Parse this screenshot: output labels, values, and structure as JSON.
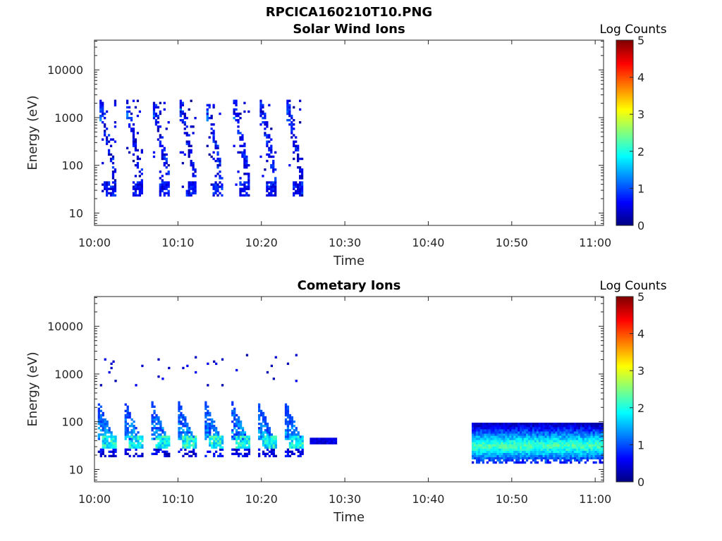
{
  "page_title": "RPCICA160210T10.PNG",
  "chart_data": [
    {
      "type": "heatmap",
      "title": "Solar Wind Ions",
      "xlabel": "Time",
      "ylabel": "Energy (eV)",
      "x_tick_labels": [
        "10:00",
        "10:10",
        "10:20",
        "10:30",
        "10:40",
        "10:50",
        "11:00"
      ],
      "x_ticks_min": [
        0,
        10,
        20,
        30,
        40,
        50,
        60
      ],
      "xlim_min": [
        0,
        61
      ],
      "y_scale": "log",
      "y_tick_labels": [
        "10",
        "100",
        "1000",
        "10000"
      ],
      "y_ticks": [
        10,
        100,
        1000,
        10000
      ],
      "ylim": [
        5.5,
        42000
      ],
      "colorbar": {
        "label": "Log Counts",
        "range": [
          0,
          5
        ],
        "tick_labels": [
          "0",
          "1",
          "2",
          "3",
          "4",
          "5"
        ],
        "colormap": "jet"
      },
      "data_time_range_min": [
        0.5,
        25.8
      ],
      "sweep_start_times_min": [
        0.6,
        3.8,
        7.0,
        10.2,
        13.4,
        16.6,
        19.8,
        23.0
      ],
      "sweep_energy_range_ev": [
        22,
        2000
      ],
      "peak_energy_ev": 35,
      "typical_log_counts": [
        0,
        1.2
      ]
    },
    {
      "type": "heatmap",
      "title": "Cometary Ions",
      "xlabel": "Time",
      "ylabel": "Energy (eV)",
      "x_tick_labels": [
        "10:00",
        "10:10",
        "10:20",
        "10:30",
        "10:40",
        "10:50",
        "11:00"
      ],
      "x_ticks_min": [
        0,
        10,
        20,
        30,
        40,
        50,
        60
      ],
      "xlim_min": [
        0,
        61
      ],
      "y_scale": "log",
      "y_tick_labels": [
        "10",
        "100",
        "1000",
        "10000"
      ],
      "y_ticks": [
        10,
        100,
        1000,
        10000
      ],
      "ylim": [
        5.5,
        42000
      ],
      "colorbar": {
        "label": "Log Counts",
        "range": [
          0,
          5
        ],
        "tick_labels": [
          "0",
          "1",
          "2",
          "3",
          "4",
          "5"
        ],
        "colormap": "jet"
      },
      "data_time_range_min": [
        [
          0.3,
          28.9
        ],
        [
          45.2,
          61
        ]
      ],
      "sweep_start_times_min": [
        0.4,
        3.6,
        6.8,
        10.0,
        13.2,
        16.4,
        19.6,
        22.8
      ],
      "sweep_energy_range_ev": [
        16,
        2500
      ],
      "band_energy_range_ev": [
        15,
        85
      ],
      "band_peak_energy_ev": 30,
      "typical_log_counts": [
        0,
        2.3
      ]
    }
  ]
}
